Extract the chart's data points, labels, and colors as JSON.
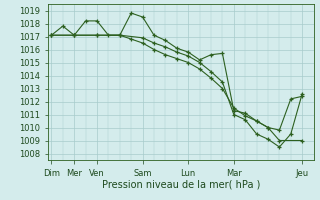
{
  "title": "",
  "xlabel": "Pression niveau de la mer( hPa )",
  "bg_color": "#d4ecec",
  "grid_color": "#a8cccc",
  "line_color": "#2d6020",
  "ylim": [
    1007.5,
    1019.5
  ],
  "yticks": [
    1008,
    1009,
    1010,
    1011,
    1012,
    1013,
    1014,
    1015,
    1016,
    1017,
    1018,
    1019
  ],
  "x_tick_positions": [
    0,
    1,
    2,
    4,
    6,
    8,
    11
  ],
  "x_tick_labels": [
    "Dim",
    "Mer",
    "Ven",
    "Sam",
    "Lun",
    "Mar",
    "Jeu"
  ],
  "xlim": [
    -0.15,
    11.5
  ],
  "line1_x": [
    0,
    0.5,
    1,
    1.5,
    2,
    2.5,
    3,
    3.5,
    4,
    4.5,
    5,
    5.5,
    6,
    6.5,
    7,
    7.5,
    8,
    8.5,
    9,
    9.5,
    10,
    11
  ],
  "line1_y": [
    1017.1,
    1017.8,
    1017.1,
    1018.2,
    1018.2,
    1017.1,
    1017.1,
    1018.8,
    1018.5,
    1017.1,
    1016.7,
    1016.1,
    1015.8,
    1015.2,
    1015.6,
    1015.7,
    1011.3,
    1011.1,
    1010.5,
    1010.0,
    1009.0,
    1009.0
  ],
  "line2_x": [
    0,
    1,
    2,
    3,
    4,
    4.5,
    5,
    5.5,
    6,
    6.5,
    7,
    7.5,
    8,
    8.5,
    9,
    9.5,
    10,
    10.5,
    11
  ],
  "line2_y": [
    1017.1,
    1017.1,
    1017.1,
    1017.1,
    1016.9,
    1016.5,
    1016.2,
    1015.8,
    1015.5,
    1015.0,
    1014.3,
    1013.5,
    1011.0,
    1010.6,
    1009.5,
    1009.1,
    1008.5,
    1009.5,
    1012.6
  ],
  "line3_x": [
    0,
    1,
    2,
    3,
    3.5,
    4,
    4.5,
    5,
    5.5,
    6,
    6.5,
    7,
    7.5,
    8,
    8.5,
    9,
    9.5,
    10,
    10.5,
    11
  ],
  "line3_y": [
    1017.1,
    1017.1,
    1017.1,
    1017.1,
    1016.8,
    1016.5,
    1016.0,
    1015.6,
    1015.3,
    1015.0,
    1014.5,
    1013.8,
    1013.0,
    1011.5,
    1010.9,
    1010.5,
    1010.0,
    1009.8,
    1012.2,
    1012.4
  ]
}
